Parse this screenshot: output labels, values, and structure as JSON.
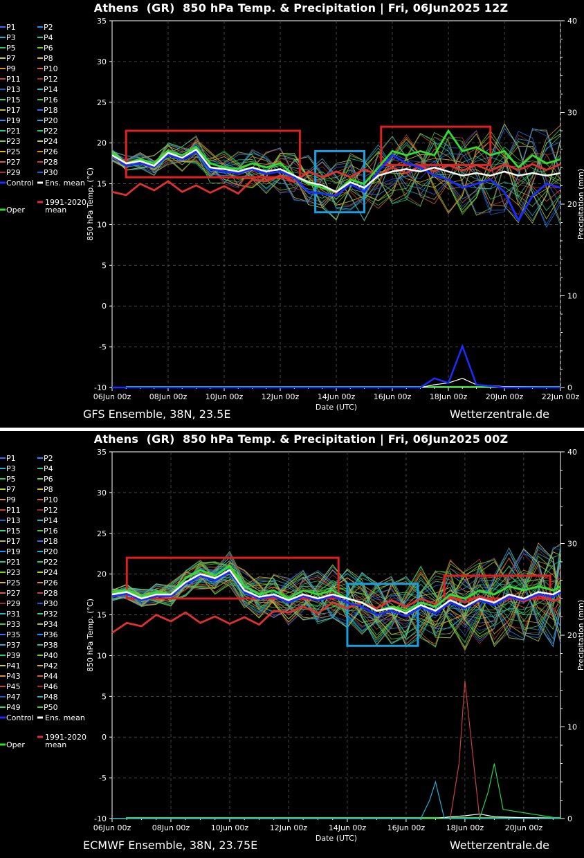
{
  "chart_data": [
    {
      "id": "gfs",
      "type": "line",
      "title": "Athens  (GR)  850 hPa Temp. & Precipitation | Fri, 06Jun2025 12Z",
      "footer_left": "GFS Ensemble, 38N, 23.5E",
      "footer_right": "Wetterzentrale.de",
      "xlabel": "Date (UTC)",
      "ylabel": "850 hPa Temp. (°C)",
      "y2label": "Precipitation (mm)",
      "ylim": [
        -10,
        35
      ],
      "y2lim": [
        0,
        40
      ],
      "xlim": [
        0,
        16
      ],
      "yticks": [
        "35",
        "30",
        "25",
        "20",
        "15",
        "10",
        "5",
        "0",
        "-5",
        "-10"
      ],
      "y2ticks": [
        "40",
        "30",
        "20",
        "10",
        "0"
      ],
      "xticks": [
        "06Jun 00z",
        "08Jun 00z",
        "10Jun 00z",
        "12Jun 00z",
        "14Jun 00z",
        "16Jun 00z",
        "18Jun 00z",
        "20Jun 00z",
        "22Jun 00z"
      ],
      "grid": true,
      "legend": {
        "members": [
          "P1",
          "P2",
          "P3",
          "P4",
          "P5",
          "P6",
          "P7",
          "P8",
          "P9",
          "P10",
          "P11",
          "P12",
          "P13",
          "P14",
          "P15",
          "P16",
          "P17",
          "P18",
          "P19",
          "P20",
          "P21",
          "P22",
          "P23",
          "P24",
          "P25",
          "P26",
          "P27",
          "P28",
          "P29",
          "P30"
        ],
        "control": "Control",
        "ens_mean": "Ens. mean",
        "oper": "Oper",
        "clim_line1": "1991-2020",
        "clim_line2": "mean"
      },
      "highlight_boxes": [
        {
          "color": "#e02020",
          "x": [
            0.5,
            6.7
          ],
          "y": [
            15.8,
            21.5
          ]
        },
        {
          "color": "#1aa0e0",
          "x": [
            7.25,
            9.0
          ],
          "y": [
            11.5,
            19.0
          ]
        },
        {
          "color": "#e02020",
          "x": [
            9.6,
            13.5
          ],
          "y": [
            17.3,
            22.0
          ]
        }
      ],
      "series": [
        {
          "name": "Ens. mean",
          "x": [
            0,
            0.5,
            1,
            1.5,
            2,
            2.5,
            3,
            3.5,
            4,
            4.5,
            5,
            5.5,
            6,
            6.5,
            7,
            7.5,
            8,
            8.5,
            9,
            9.5,
            10,
            10.5,
            11,
            11.5,
            12,
            12.5,
            13,
            13.5,
            14,
            14.5,
            15,
            15.5,
            16
          ],
          "values": [
            18.5,
            17.5,
            17.8,
            17.2,
            18.8,
            18.2,
            19.2,
            17.0,
            16.8,
            16.5,
            17.0,
            16.5,
            16.8,
            16.0,
            15.2,
            14.8,
            14.0,
            15.2,
            14.5,
            16.0,
            16.5,
            16.8,
            16.5,
            17.0,
            16.5,
            16.0,
            16.3,
            16.0,
            16.5,
            16.0,
            16.3,
            16.0,
            16.3
          ]
        },
        {
          "name": "Control",
          "x": [
            0,
            0.5,
            1,
            1.5,
            2,
            2.5,
            3,
            3.5,
            4,
            4.5,
            5,
            5.5,
            6,
            6.5,
            7,
            7.5,
            8,
            8.5,
            9,
            9.5,
            10,
            10.5,
            11,
            11.5,
            12,
            12.5,
            13,
            13.5,
            14,
            14.5,
            15,
            15.5,
            16
          ],
          "values": [
            18.5,
            17.2,
            17.5,
            17.0,
            18.5,
            18.0,
            19.0,
            16.8,
            16.5,
            16.3,
            16.8,
            16.2,
            16.5,
            15.8,
            14.0,
            13.8,
            13.5,
            15.0,
            14.0,
            16.5,
            18.5,
            17.5,
            17.0,
            16.0,
            15.5,
            14.5,
            15.0,
            15.5,
            14.0,
            10.5,
            13.5,
            15.0,
            14.5
          ]
        },
        {
          "name": "Oper",
          "x": [
            0,
            0.5,
            1,
            1.5,
            2,
            2.5,
            3,
            3.5,
            4,
            4.5,
            5,
            5.5,
            6,
            6.5,
            7,
            7.5,
            8,
            8.5,
            9,
            9.5,
            10,
            10.5,
            11,
            11.5,
            12,
            12.5,
            13,
            13.5,
            14,
            14.5,
            15,
            15.5,
            16
          ],
          "values": [
            18.8,
            17.5,
            18.0,
            17.5,
            19.0,
            18.5,
            19.5,
            17.5,
            17.0,
            16.8,
            17.5,
            17.0,
            17.5,
            16.0,
            15.0,
            14.5,
            14.0,
            15.5,
            15.0,
            17.0,
            19.0,
            18.5,
            19.0,
            18.5,
            21.5,
            19.0,
            19.5,
            18.5,
            19.0,
            17.0,
            18.5,
            17.5,
            18.0
          ]
        },
        {
          "name": "1991-2020 mean",
          "x": [
            0,
            0.5,
            1,
            1.5,
            2,
            2.5,
            3,
            3.5,
            4,
            4.5,
            5,
            5.5,
            6,
            6.5,
            7,
            7.5,
            8,
            8.5,
            9,
            9.5,
            10,
            10.5,
            11,
            11.5,
            12,
            12.5,
            13,
            13.5,
            14,
            14.5,
            15,
            15.5,
            16
          ],
          "values": [
            14.0,
            13.6,
            15.0,
            14.2,
            15.3,
            14.0,
            14.8,
            13.9,
            14.7,
            13.8,
            15.5,
            15.3,
            16.0,
            15.2,
            16.5,
            15.8,
            16.5,
            15.8,
            16.8,
            16.0,
            17.0,
            16.3,
            17.2,
            16.5,
            17.3,
            16.6,
            17.3,
            16.6,
            17.4,
            16.7,
            17.4,
            16.7,
            17.4
          ]
        }
      ],
      "precip_series": [
        {
          "name": "Ens. mean",
          "x": [
            0,
            11,
            11.5,
            12,
            12.5,
            13,
            14,
            16
          ],
          "values": [
            0,
            0,
            0.3,
            0.5,
            1.0,
            0.3,
            0.1,
            0
          ]
        },
        {
          "name": "Control",
          "x": [
            0,
            11,
            11.5,
            12,
            12.5,
            13,
            14,
            16
          ],
          "values": [
            0,
            0,
            1.0,
            0.5,
            4.5,
            0.3,
            0,
            0
          ]
        }
      ]
    },
    {
      "id": "ecmwf",
      "type": "line",
      "title": "Athens  (GR)  850 hPa Temp. & Precipitation | Fri, 06Jun2025 00Z",
      "footer_left": "ECMWF Ensemble, 38N, 23.75E",
      "footer_right": "Wetterzentrale.de",
      "xlabel": "Date (UTC)",
      "ylabel": "850 hPa Temp. (°C)",
      "y2label": "Precipitation (mm)",
      "ylim": [
        -10,
        35
      ],
      "y2lim": [
        0,
        40
      ],
      "xlim": [
        0,
        15.25
      ],
      "yticks": [
        "35",
        "30",
        "25",
        "20",
        "15",
        "10",
        "5",
        "0",
        "-5",
        "-10"
      ],
      "y2ticks": [
        "40",
        "30",
        "20",
        "10",
        "0"
      ],
      "xticks": [
        "06Jun 00z",
        "08Jun 00z",
        "10Jun 00z",
        "12Jun 00z",
        "14Jun 00z",
        "16Jun 00z",
        "18Jun 00z",
        "20Jun 00z"
      ],
      "grid": true,
      "legend": {
        "members": [
          "P1",
          "P2",
          "P3",
          "P4",
          "P5",
          "P6",
          "P7",
          "P8",
          "P9",
          "P10",
          "P11",
          "P12",
          "P13",
          "P14",
          "P15",
          "P16",
          "P17",
          "P18",
          "P19",
          "P20",
          "P21",
          "P22",
          "P23",
          "P24",
          "P25",
          "P26",
          "P27",
          "P28",
          "P29",
          "P30",
          "P31",
          "P32",
          "P33",
          "P34",
          "P35",
          "P36",
          "P37",
          "P38",
          "P39",
          "P40",
          "P41",
          "P42",
          "P43",
          "P44",
          "P45",
          "P46",
          "P47",
          "P48",
          "P49",
          "P50"
        ],
        "control": "Control",
        "ens_mean": "Ens. mean",
        "oper": "Oper",
        "clim_line1": "1991-2020",
        "clim_line2": "mean"
      },
      "highlight_boxes": [
        {
          "color": "#e02020",
          "x": [
            0.5,
            7.7
          ],
          "y": [
            17.0,
            22.0
          ]
        },
        {
          "color": "#1aa0e0",
          "x": [
            8.0,
            10.4
          ],
          "y": [
            11.2,
            18.8
          ]
        },
        {
          "color": "#e02020",
          "x": [
            11.3,
            14.9
          ],
          "y": [
            17.0,
            19.8
          ]
        }
      ],
      "series": [
        {
          "name": "Ens. mean",
          "x": [
            0,
            0.5,
            1,
            1.5,
            2,
            2.5,
            3,
            3.5,
            4,
            4.5,
            5,
            5.5,
            6,
            6.5,
            7,
            7.5,
            8,
            8.5,
            9,
            9.5,
            10,
            10.5,
            11,
            11.5,
            12,
            12.5,
            13,
            13.5,
            14,
            14.5,
            15,
            15.25
          ],
          "values": [
            17.5,
            17.8,
            17.0,
            17.5,
            17.5,
            19.0,
            20.0,
            19.5,
            20.5,
            18.0,
            17.2,
            17.5,
            16.8,
            17.5,
            17.0,
            17.5,
            17.0,
            16.5,
            15.5,
            15.8,
            15.2,
            16.2,
            15.5,
            16.8,
            16.0,
            17.0,
            16.5,
            17.5,
            17.0,
            17.8,
            17.5,
            18.0
          ]
        },
        {
          "name": "Control",
          "x": [
            0,
            0.5,
            1,
            1.5,
            2,
            2.5,
            3,
            3.5,
            4,
            4.5,
            5,
            5.5,
            6,
            6.5,
            7,
            7.5,
            8,
            8.5,
            9,
            9.5,
            10,
            10.5,
            11,
            11.5,
            12,
            12.5,
            13,
            13.5,
            14,
            14.5,
            15,
            15.25
          ],
          "values": [
            17.3,
            17.6,
            16.8,
            17.3,
            17.3,
            18.8,
            19.8,
            19.2,
            20.3,
            17.8,
            17.0,
            17.3,
            16.5,
            17.3,
            16.8,
            17.3,
            16.5,
            16.0,
            15.0,
            15.5,
            14.8,
            16.0,
            15.2,
            16.5,
            15.8,
            16.8,
            16.2,
            17.2,
            16.8,
            17.5,
            17.2,
            17.8
          ]
        },
        {
          "name": "Oper",
          "x": [
            0,
            0.5,
            1,
            1.5,
            2,
            2.5,
            3,
            3.5,
            4,
            4.5,
            5,
            5.5,
            6,
            6.5,
            7,
            7.5,
            8,
            8.5,
            9,
            9.5,
            10,
            10.5,
            11,
            11.5,
            12,
            12.5,
            13,
            13.5,
            14,
            14.5,
            15,
            15.25
          ],
          "values": [
            17.8,
            18.0,
            17.2,
            17.8,
            17.5,
            19.5,
            20.5,
            19.8,
            21.0,
            18.5,
            17.5,
            18.0,
            17.0,
            18.0,
            17.5,
            18.0,
            17.0,
            16.5,
            15.5,
            16.0,
            15.5,
            16.5,
            16.0,
            17.5,
            17.0,
            18.0,
            17.5,
            18.5,
            18.0,
            18.5,
            18.0,
            18.5
          ]
        },
        {
          "name": "1991-2020 mean",
          "x": [
            0,
            0.5,
            1,
            1.5,
            2,
            2.5,
            3,
            3.5,
            4,
            4.5,
            5,
            5.5,
            6,
            6.5,
            7,
            7.5,
            8,
            8.5,
            9,
            9.5,
            10,
            10.5,
            11,
            11.5,
            12,
            12.5,
            13,
            13.5,
            14,
            14.5,
            15,
            15.25
          ],
          "values": [
            12.8,
            14.0,
            13.6,
            15.0,
            14.2,
            15.3,
            14.0,
            14.8,
            13.9,
            14.7,
            13.8,
            15.5,
            15.3,
            16.0,
            15.2,
            16.5,
            15.8,
            16.5,
            15.8,
            16.8,
            16.0,
            17.0,
            16.3,
            17.2,
            16.5,
            17.3,
            16.6,
            17.3,
            16.6,
            17.4,
            16.7,
            17.0
          ]
        }
      ],
      "precip_series": [
        {
          "name": "Ens. mean",
          "x": [
            0,
            11,
            11.5,
            12,
            12.5,
            13,
            14,
            15.25
          ],
          "values": [
            0,
            0,
            0.2,
            0.3,
            0.5,
            0.2,
            0.1,
            0
          ]
        },
        {
          "name": "P43",
          "x": [
            0,
            11,
            11.5,
            11.8,
            12,
            12.3,
            12.5,
            15.25
          ],
          "values": [
            0,
            0,
            0,
            6,
            15,
            6,
            0,
            0
          ]
        },
        {
          "name": "P38",
          "x": [
            0,
            12.5,
            12.8,
            13,
            13.3,
            15.25
          ],
          "values": [
            0,
            0,
            3,
            6,
            1,
            0
          ]
        },
        {
          "name": "P46",
          "x": [
            0,
            10.5,
            10.8,
            11,
            11.3,
            15.25
          ],
          "values": [
            0,
            0,
            2,
            4,
            0,
            0
          ]
        }
      ]
    }
  ]
}
